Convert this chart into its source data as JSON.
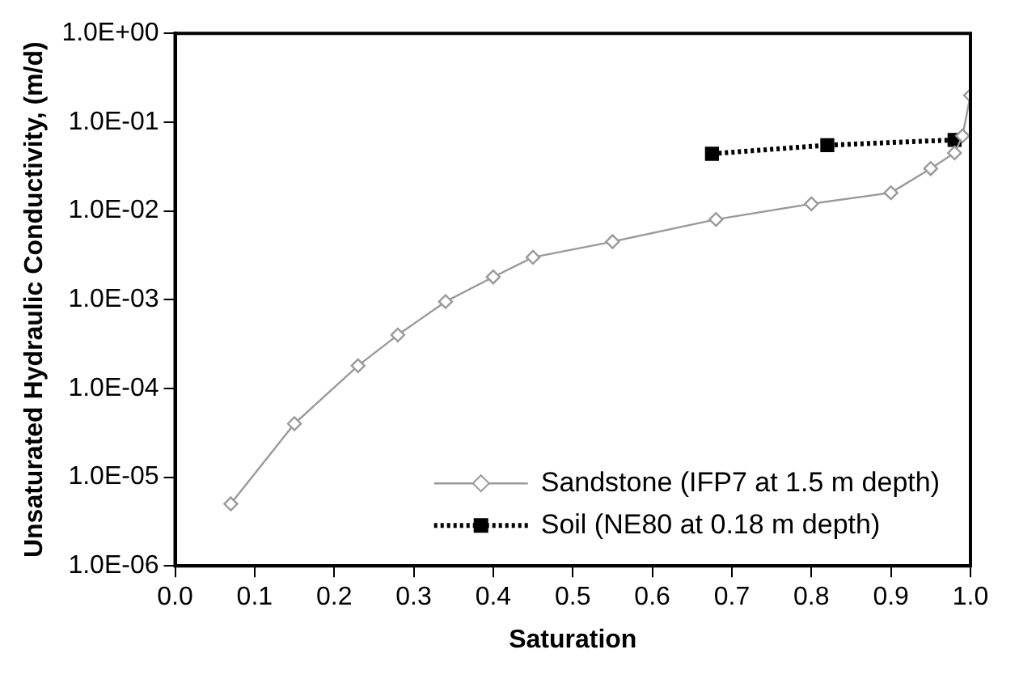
{
  "chart_data": {
    "type": "line",
    "xlabel": "Saturation",
    "ylabel": "Unsaturated Hydraulic Conductivity, (m/d)",
    "log": "y",
    "xlim": [
      0,
      1
    ],
    "ylim": [
      1e-06,
      1
    ],
    "xticks": [
      {
        "value": 0,
        "label": "0.0"
      },
      {
        "value": 0.1,
        "label": "0.1"
      },
      {
        "value": 0.2,
        "label": "0.2"
      },
      {
        "value": 0.3,
        "label": "0.3"
      },
      {
        "value": 0.4,
        "label": "0.4"
      },
      {
        "value": 0.5,
        "label": "0.5"
      },
      {
        "value": 0.6,
        "label": "0.6"
      },
      {
        "value": 0.7,
        "label": "0.7"
      },
      {
        "value": 0.8,
        "label": "0.8"
      },
      {
        "value": 0.9,
        "label": "0.9"
      },
      {
        "value": 1,
        "label": "1.0"
      }
    ],
    "yticks": [
      {
        "value": 1e-06,
        "label": "1.0E-06"
      },
      {
        "value": 1e-05,
        "label": "1.0E-05"
      },
      {
        "value": 0.0001,
        "label": "1.0E-04"
      },
      {
        "value": 0.001,
        "label": "1.0E-03"
      },
      {
        "value": 0.01,
        "label": "1.0E-02"
      },
      {
        "value": 0.1,
        "label": "1.0E-01"
      },
      {
        "value": 1,
        "label": "1.0E+00"
      }
    ],
    "grid": false,
    "legend": "bottom right",
    "series": [
      {
        "name": "Sandstone (IFP7 at 1.5 m depth)",
        "color": "#9a9a9a",
        "marker": "diamond",
        "line_style": "solid",
        "x": [
          0.07,
          0.15,
          0.23,
          0.28,
          0.34,
          0.4,
          0.45,
          0.55,
          0.68,
          0.8,
          0.9,
          0.95,
          0.98,
          0.99,
          1.0
        ],
        "values": [
          5e-06,
          4e-05,
          0.00018,
          0.0004,
          0.00095,
          0.0018,
          0.003,
          0.0045,
          0.008,
          0.012,
          0.016,
          0.03,
          0.045,
          0.07,
          0.2
        ]
      },
      {
        "name": "Soil (NE80 at 0.18 m depth)",
        "color": "#000000",
        "marker": "square",
        "line_style": "dotted",
        "x": [
          0.675,
          0.82,
          0.98
        ],
        "values": [
          0.044,
          0.055,
          0.063
        ]
      }
    ]
  }
}
